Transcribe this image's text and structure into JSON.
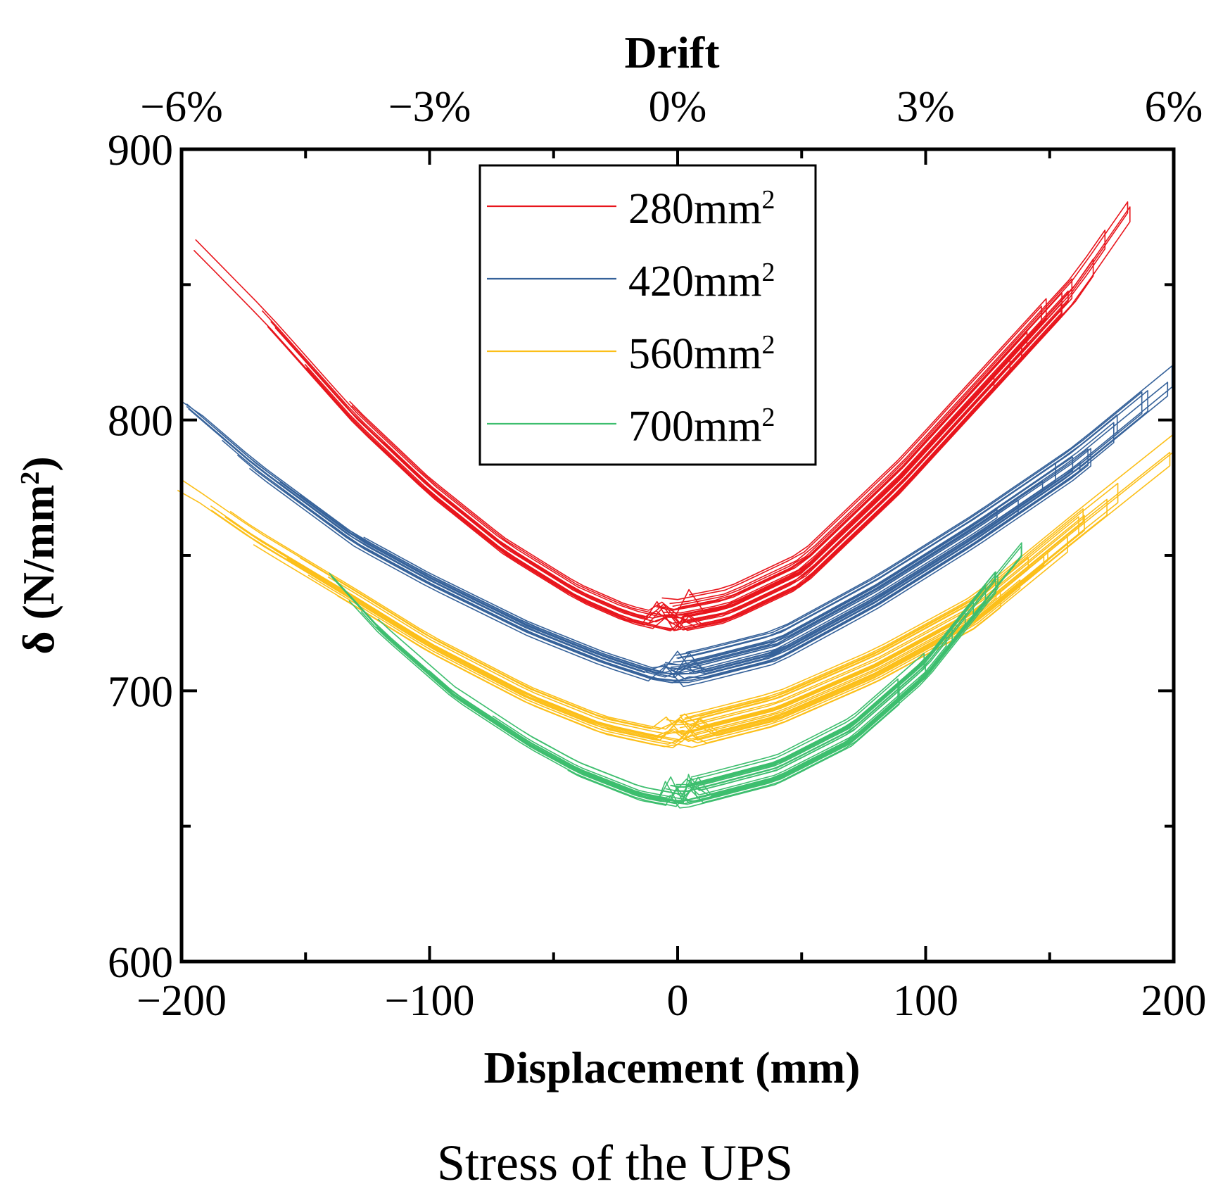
{
  "chart_data": {
    "type": "line",
    "title": "",
    "caption": "Stress of the UPS",
    "xlabel": "Displacement (mm)",
    "ylabel": "δ (N/mm",
    "ylabel_sup": "2",
    "ylabel_close": ")",
    "x2label": "Drift",
    "xlim": [
      -200,
      200
    ],
    "ylim": [
      600,
      900
    ],
    "x_ticks": [
      -200,
      -100,
      0,
      100,
      200
    ],
    "x_tick_labels": [
      "−200",
      "−100",
      "0",
      "100",
      "200"
    ],
    "y_ticks": [
      600,
      700,
      800,
      900
    ],
    "y_tick_labels": [
      "600",
      "700",
      "800",
      "900"
    ],
    "x2_ticks": [
      -200,
      -100,
      0,
      100,
      200
    ],
    "x2_tick_labels": [
      "−6%",
      "−3%",
      "0%",
      "3%",
      "6%"
    ],
    "grid": false,
    "legend_position": "top-center",
    "series": [
      {
        "name": "280mm",
        "sup": "2",
        "color": "#e8151c",
        "vertex": [
          -2,
          723
        ],
        "left": [
          [
            -195,
            864
          ],
          [
            -165,
            836
          ],
          [
            -130,
            800
          ],
          [
            -100,
            774
          ],
          [
            -70,
            752
          ],
          [
            -40,
            735
          ],
          [
            -20,
            727
          ]
        ],
        "right": [
          [
            20,
            727
          ],
          [
            50,
            740
          ],
          [
            90,
            775
          ],
          [
            130,
            815
          ],
          [
            160,
            845
          ],
          [
            182,
            874
          ]
        ],
        "loops": 14,
        "left_ends": [
          -195,
          -165,
          -165,
          -150,
          -130,
          -120,
          -110,
          -100
        ],
        "right_ends": [
          182,
          170,
          160,
          155,
          147,
          140,
          135,
          125
        ]
      },
      {
        "name": "420mm",
        "sup": "2",
        "color": "#36629a",
        "vertex": [
          0,
          703
        ],
        "left": [
          [
            -198,
            804
          ],
          [
            -170,
            782
          ],
          [
            -130,
            755
          ],
          [
            -100,
            740
          ],
          [
            -60,
            722
          ],
          [
            -30,
            711
          ],
          [
            -10,
            705
          ]
        ],
        "right": [
          [
            10,
            705
          ],
          [
            40,
            712
          ],
          [
            80,
            732
          ],
          [
            120,
            755
          ],
          [
            160,
            780
          ],
          [
            200,
            810
          ]
        ],
        "loops": 14,
        "left_ends": [
          -198,
          -195,
          -185,
          -175,
          -160,
          -150,
          -140,
          -125
        ],
        "right_ends": [
          200,
          188,
          175,
          168,
          160,
          150,
          140,
          130
        ]
      },
      {
        "name": "560mm",
        "sup": "2",
        "color": "#fcbf19",
        "vertex": [
          2,
          680
        ],
        "left": [
          [
            -200,
            774
          ],
          [
            -170,
            755
          ],
          [
            -130,
            733
          ],
          [
            -100,
            716
          ],
          [
            -60,
            697
          ],
          [
            -30,
            686
          ],
          [
            -10,
            682
          ]
        ],
        "right": [
          [
            10,
            682
          ],
          [
            40,
            689
          ],
          [
            80,
            705
          ],
          [
            120,
            725
          ],
          [
            160,
            755
          ],
          [
            197,
            782
          ]
        ],
        "loops": 14,
        "left_ends": [
          -200,
          -190,
          -180,
          -170,
          -160,
          -150,
          -140
        ],
        "right_ends": [
          197,
          175,
          166,
          160,
          150,
          140,
          130
        ]
      },
      {
        "name": "700mm",
        "sup": "2",
        "color": "#3dbe6e",
        "vertex": [
          2,
          658
        ],
        "left": [
          [
            -142,
            744
          ],
          [
            -120,
            722
          ],
          [
            -90,
            698
          ],
          [
            -60,
            680
          ],
          [
            -40,
            670
          ],
          [
            -15,
            661
          ]
        ],
        "right": [
          [
            15,
            661
          ],
          [
            40,
            667
          ],
          [
            70,
            681
          ],
          [
            100,
            705
          ],
          [
            120,
            728
          ],
          [
            136,
            746
          ]
        ],
        "loops": 14,
        "left_ends": [
          -142,
          -130,
          -120,
          -100,
          -75,
          -60,
          -45
        ],
        "right_ends": [
          136,
          130,
          125,
          118,
          110,
          100,
          90
        ]
      }
    ]
  }
}
